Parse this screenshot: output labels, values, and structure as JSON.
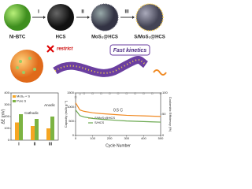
{
  "scheme": {
    "steps": [
      "I",
      "II",
      "III",
      "IV"
    ],
    "materials": [
      "Ni-BTC",
      "HCS",
      "MoS₂@HCS",
      "S/MoS₂@HCS"
    ],
    "restrict": "restrict",
    "fast": "Fast kinetics"
  },
  "chart_data": [
    {
      "type": "bar",
      "ylabel": "ΔE (mV)",
      "categories": [
        "I",
        "II",
        "III"
      ],
      "series": [
        {
          "name": "MoS₂ + S",
          "color": "#f5a623",
          "values": [
            150,
            120,
            100
          ]
        },
        {
          "name": "Pure S",
          "color": "#7cb342",
          "values": [
            220,
            180,
            200
          ]
        }
      ],
      "annotations": [
        "Cathodic",
        "Anodic"
      ],
      "ylim": [
        0,
        400
      ],
      "yticks": [
        0,
        100,
        200,
        300,
        400
      ]
    },
    {
      "type": "line",
      "xlabel": "Cycle Number",
      "ylabel": "Capacity (mAh g⁻¹)",
      "y2label": "Coulombic Efficiency (%)",
      "annotation": "0.5 C",
      "x": [
        0,
        25,
        50,
        100,
        150,
        200,
        250,
        300,
        350,
        400,
        450,
        500
      ],
      "series": [
        {
          "name": "S/MoS₂@HCS",
          "color": "#f08a24",
          "values": [
            1150,
            900,
            850,
            800,
            770,
            750,
            730,
            710,
            700,
            690,
            680,
            670
          ]
        },
        {
          "name": "S/HCS",
          "color": "#6aa84f",
          "values": [
            900,
            700,
            650,
            600,
            570,
            550,
            530,
            510,
            500,
            490,
            480,
            470
          ]
        },
        {
          "name": "CE",
          "color": "#888888",
          "axis": "y2",
          "values": [
            90,
            98,
            99,
            99,
            99,
            99,
            99,
            99,
            99,
            99,
            99,
            99
          ]
        }
      ],
      "xlim": [
        0,
        500
      ],
      "xticks": [
        0,
        100,
        200,
        300,
        400,
        500
      ],
      "ylim": [
        0,
        1500
      ],
      "yticks": [
        0,
        500,
        1000,
        1500
      ],
      "y2lim": [
        0,
        100
      ],
      "y2ticks": [
        0,
        50,
        100
      ]
    }
  ]
}
